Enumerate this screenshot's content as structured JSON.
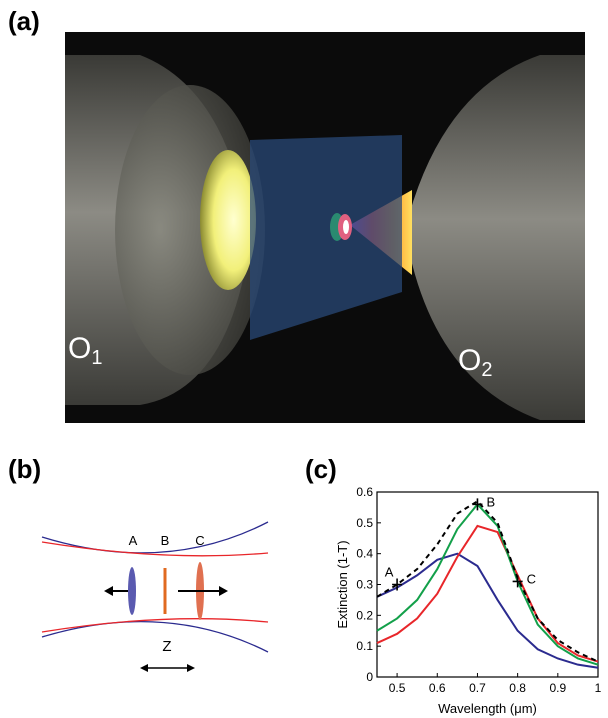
{
  "panels": {
    "a": {
      "label": "(a)",
      "objectives": [
        {
          "letter": "O",
          "subscript": "1"
        },
        {
          "letter": "O",
          "subscript": "2"
        }
      ]
    },
    "b": {
      "label": "(b)",
      "positions": [
        "A",
        "B",
        "C"
      ],
      "axis_label": "Z"
    },
    "c": {
      "label": "(c)"
    }
  },
  "chart_data": {
    "type": "line",
    "xlabel": "Wavelength (μm)",
    "ylabel": "Extinction (1-T)",
    "x": [
      0.45,
      0.5,
      0.55,
      0.6,
      0.65,
      0.7,
      0.75,
      0.8,
      0.85,
      0.9,
      0.95,
      1.0
    ],
    "xlim": [
      0.45,
      1.0
    ],
    "ylim": [
      0,
      0.6
    ],
    "xticks": [
      0.5,
      0.6,
      0.7,
      0.8,
      0.9,
      1
    ],
    "yticks": [
      0,
      0.1,
      0.2,
      0.3,
      0.4,
      0.5,
      0.6
    ],
    "series": [
      {
        "color": "#2b2b8f",
        "dashed": false,
        "values": [
          0.26,
          0.29,
          0.33,
          0.38,
          0.4,
          0.36,
          0.25,
          0.15,
          0.09,
          0.06,
          0.04,
          0.03
        ]
      },
      {
        "color": "#e8262a",
        "dashed": false,
        "values": [
          0.11,
          0.14,
          0.19,
          0.27,
          0.39,
          0.49,
          0.47,
          0.33,
          0.19,
          0.11,
          0.07,
          0.05
        ]
      },
      {
        "color": "#13a04a",
        "dashed": false,
        "values": [
          0.15,
          0.19,
          0.25,
          0.35,
          0.48,
          0.56,
          0.49,
          0.31,
          0.17,
          0.1,
          0.06,
          0.04
        ]
      },
      {
        "color": "#000000",
        "dashed": true,
        "values": [
          0.26,
          0.3,
          0.35,
          0.43,
          0.53,
          0.57,
          0.5,
          0.32,
          0.19,
          0.12,
          0.08,
          0.05
        ]
      }
    ],
    "markers": [
      {
        "label": "A",
        "x": 0.5,
        "y": 0.3
      },
      {
        "label": "B",
        "x": 0.7,
        "y": 0.56
      },
      {
        "label": "C",
        "x": 0.8,
        "y": 0.31
      }
    ]
  }
}
